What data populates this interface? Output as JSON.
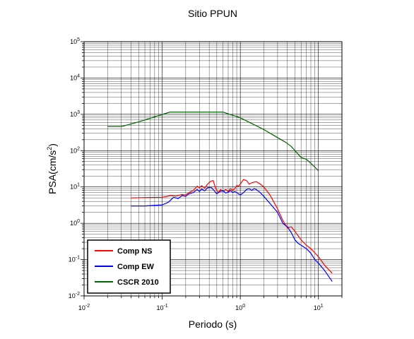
{
  "chart_data": {
    "type": "line",
    "title": "Sitio PPUN",
    "xlabel": "Periodo (s)",
    "ylabel": "PSA(cm/s2)",
    "xscale": "log",
    "yscale": "log",
    "xlim": [
      0.01,
      20
    ],
    "ylim": [
      0.01,
      100000
    ],
    "grid": true,
    "legend_position": "bottom-left",
    "x_ticks": [
      {
        "base": "10",
        "exp": "-2",
        "value": 0.01
      },
      {
        "base": "10",
        "exp": "-1",
        "value": 0.1
      },
      {
        "base": "10",
        "exp": "0",
        "value": 1
      },
      {
        "base": "10",
        "exp": "1",
        "value": 10
      }
    ],
    "y_ticks": [
      {
        "base": "10",
        "exp": "-2",
        "value": 0.01
      },
      {
        "base": "10",
        "exp": "-1",
        "value": 0.1
      },
      {
        "base": "10",
        "exp": "0",
        "value": 1
      },
      {
        "base": "10",
        "exp": "1",
        "value": 10
      },
      {
        "base": "10",
        "exp": "2",
        "value": 100
      },
      {
        "base": "10",
        "exp": "3",
        "value": 1000
      },
      {
        "base": "10",
        "exp": "4",
        "value": 10000
      },
      {
        "base": "10",
        "exp": "5",
        "value": 100000
      }
    ],
    "series": [
      {
        "name": "Comp NS",
        "color": "#ff0000",
        "points": [
          [
            0.04,
            5.0
          ],
          [
            0.06,
            5.1
          ],
          [
            0.1,
            5.2
          ],
          [
            0.13,
            5.8
          ],
          [
            0.15,
            5.6
          ],
          [
            0.18,
            6.2
          ],
          [
            0.2,
            6.0
          ],
          [
            0.22,
            7.0
          ],
          [
            0.25,
            8.0
          ],
          [
            0.28,
            10.5
          ],
          [
            0.3,
            9.5
          ],
          [
            0.32,
            10.8
          ],
          [
            0.35,
            9.2
          ],
          [
            0.38,
            12.0
          ],
          [
            0.42,
            14.5
          ],
          [
            0.45,
            15.0
          ],
          [
            0.48,
            9.5
          ],
          [
            0.52,
            7.0
          ],
          [
            0.56,
            8.5
          ],
          [
            0.6,
            7.5
          ],
          [
            0.65,
            8.5
          ],
          [
            0.7,
            7.5
          ],
          [
            0.75,
            9.0
          ],
          [
            0.8,
            8.0
          ],
          [
            0.85,
            9.0
          ],
          [
            0.9,
            11.0
          ],
          [
            0.95,
            10.5
          ],
          [
            1.0,
            12.0
          ],
          [
            1.05,
            14.0
          ],
          [
            1.1,
            16.0
          ],
          [
            1.2,
            15.0
          ],
          [
            1.3,
            12.0
          ],
          [
            1.4,
            13.0
          ],
          [
            1.6,
            14.0
          ],
          [
            1.8,
            12.0
          ],
          [
            2.0,
            10.0
          ],
          [
            2.4,
            6.0
          ],
          [
            3.0,
            2.5
          ],
          [
            3.5,
            1.2
          ],
          [
            4.0,
            0.75
          ],
          [
            4.5,
            0.8
          ],
          [
            5.0,
            0.6
          ],
          [
            6.0,
            0.35
          ],
          [
            7.0,
            0.25
          ],
          [
            8.0,
            0.2
          ],
          [
            10.0,
            0.12
          ],
          [
            12.0,
            0.07
          ],
          [
            15.0,
            0.042
          ]
        ]
      },
      {
        "name": "Comp EW",
        "color": "#0000ff",
        "points": [
          [
            0.04,
            3.0
          ],
          [
            0.06,
            3.0
          ],
          [
            0.1,
            3.2
          ],
          [
            0.12,
            3.8
          ],
          [
            0.14,
            5.2
          ],
          [
            0.16,
            4.8
          ],
          [
            0.18,
            5.8
          ],
          [
            0.2,
            5.5
          ],
          [
            0.22,
            6.5
          ],
          [
            0.25,
            7.0
          ],
          [
            0.28,
            8.5
          ],
          [
            0.3,
            7.5
          ],
          [
            0.32,
            8.8
          ],
          [
            0.35,
            7.8
          ],
          [
            0.38,
            9.5
          ],
          [
            0.42,
            9.8
          ],
          [
            0.45,
            8.5
          ],
          [
            0.5,
            6.5
          ],
          [
            0.55,
            7.5
          ],
          [
            0.6,
            8.0
          ],
          [
            0.65,
            6.8
          ],
          [
            0.7,
            7.2
          ],
          [
            0.75,
            8.0
          ],
          [
            0.8,
            7.0
          ],
          [
            0.85,
            7.5
          ],
          [
            0.9,
            7.0
          ],
          [
            1.0,
            6.0
          ],
          [
            1.1,
            7.0
          ],
          [
            1.2,
            8.5
          ],
          [
            1.3,
            9.0
          ],
          [
            1.4,
            8.0
          ],
          [
            1.5,
            9.0
          ],
          [
            1.6,
            8.5
          ],
          [
            1.8,
            7.0
          ],
          [
            2.0,
            5.5
          ],
          [
            2.4,
            3.5
          ],
          [
            3.0,
            2.0
          ],
          [
            3.5,
            1.0
          ],
          [
            4.0,
            0.8
          ],
          [
            4.5,
            0.55
          ],
          [
            5.0,
            0.35
          ],
          [
            5.5,
            0.28
          ],
          [
            6.0,
            0.25
          ],
          [
            7.0,
            0.2
          ],
          [
            8.0,
            0.15
          ],
          [
            9.0,
            0.1
          ],
          [
            10.0,
            0.08
          ],
          [
            12.0,
            0.05
          ],
          [
            15.0,
            0.025
          ]
        ]
      },
      {
        "name": "CSCR 2010",
        "color": "#006400",
        "points": [
          [
            0.02,
            460
          ],
          [
            0.03,
            460
          ],
          [
            0.05,
            620
          ],
          [
            0.125,
            1150
          ],
          [
            0.6,
            1150
          ],
          [
            1.0,
            800
          ],
          [
            2.0,
            380
          ],
          [
            3.8,
            170
          ],
          [
            4.5,
            130
          ],
          [
            5.0,
            100
          ],
          [
            6.0,
            65
          ],
          [
            7.0,
            58
          ],
          [
            8.0,
            45
          ],
          [
            10.0,
            28
          ]
        ]
      }
    ]
  }
}
